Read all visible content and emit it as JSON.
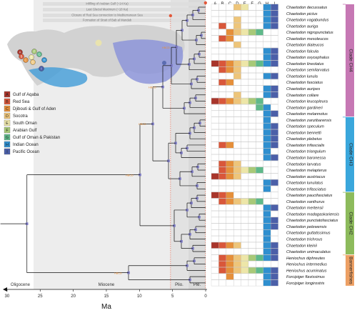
{
  "events": [
    "Infilling of Arabian Gulf (~14 Ka)",
    "Last Glacial Maximum (~18 Ka)",
    "Closure of Red Sea connection to Mediterranean Sea",
    "Formation of Strait of Bab al Mandab"
  ],
  "areas": [
    {
      "code": "A",
      "name": "Gulf of Aqaba",
      "color": "#a8352b"
    },
    {
      "code": "B",
      "name": "Red Sea",
      "color": "#d9573a"
    },
    {
      "code": "C",
      "name": "Djibouti & Gulf of Aden",
      "color": "#e58f3a"
    },
    {
      "code": "D",
      "name": "Socotra",
      "color": "#eec57a"
    },
    {
      "code": "E",
      "name": "South Oman",
      "color": "#ede6a8"
    },
    {
      "code": "F",
      "name": "Arabian Gulf",
      "color": "#a8c978"
    },
    {
      "code": "G",
      "name": "Gulf of Oman & Pakistan",
      "color": "#5fb98a"
    },
    {
      "code": "H",
      "name": "Indian Ocean",
      "color": "#2f8fcf"
    },
    {
      "code": "I",
      "name": "Pacific Ocean",
      "color": "#4b5fa8"
    }
  ],
  "species": [
    "Chaetodon decussatus",
    "Chaetodon pictus",
    "Chaetodon vagabundus",
    "Chaetodon auriga",
    "Chaetodon nigropunctatus",
    "Chaetodon mesoleucos",
    "Chaetodon dialeucos",
    "Chaetodon falcula",
    "Chaetodon oxycephalus",
    "Chaetodon lineolatus",
    "Chaetodon semilarvatus",
    "Chaetodon lunula",
    "Chaetodon fasciatus",
    "Chaetodon auripes",
    "Chaetodon collare",
    "Chaetodon leucopleura",
    "Chaetodon gardineri",
    "Chaetodon melannotus",
    "Chaetodon zanzibarensis",
    "Chaetodon speculum",
    "Chaetodon bennetti",
    "Chaetodon plebeius",
    "Chaetodon trifascialis",
    "Chaetodon triangulum",
    "Chaetodon baronessa",
    "Chaetodon larvatus",
    "Chaetodon melapterus",
    "Chaetodon austriacus",
    "Chaetodon lunulatus",
    "Chaetodon trifasciatus",
    "Chaetodon paucifasciatus",
    "Chaetodon xanthurus",
    "Chaetodon mertensii",
    "Chaetodon madagaskariensis",
    "Chaetodon punctatofasciatus",
    "Chaetodon pelewensis",
    "Chaetodon guttatissimus",
    "Chaetodon trichrous",
    "Chaetodon kleinii",
    "Chaetodon unimaculatus",
    "Heniochus diphreutes",
    "Heniochus intermedius",
    "Heniochus acuminatus",
    "Forcipiger flavissimus",
    "Forcipiger longirostris"
  ],
  "clades": [
    {
      "label": "Clade CH4",
      "first": 0,
      "last": 17,
      "color": "#c678b4"
    },
    {
      "label": "Clade CH3",
      "first": 18,
      "last": 29,
      "color": "#3aa7dc"
    },
    {
      "label": "Clade CH2",
      "first": 30,
      "last": 39,
      "color": "#8dbb5c"
    },
    {
      "label": "Bannerfishes",
      "first": 40,
      "last": 44,
      "color": "#eda064"
    }
  ],
  "presence": [
    "000110011",
    "000000011",
    "000100011",
    "010100011",
    "001111100",
    "011000000",
    "000100000",
    "000000011",
    "000000011",
    "111111111",
    "011100000",
    "000100011",
    "011000000",
    "000000011",
    "000100011",
    "111111100",
    "000000110",
    "000000011",
    "000000010",
    "000000011",
    "000000011",
    "000000011",
    "011000011",
    "000000010",
    "000000011",
    "011100000",
    "011111100",
    "111100000",
    "000000011",
    "000000010",
    "111000000",
    "011111100",
    "000000011",
    "000000010",
    "000000011",
    "000000011",
    "000000010",
    "000000010",
    "111100011",
    "000000011",
    "011111111",
    "011110000",
    "011111111",
    "001000011",
    "000000011"
  ],
  "axis": {
    "title": "Ma",
    "ticks": [
      30,
      25,
      20,
      15,
      10,
      5,
      0
    ],
    "epochs": [
      "Oligocene",
      "Miocene",
      "Plio.",
      "Ple."
    ]
  }
}
